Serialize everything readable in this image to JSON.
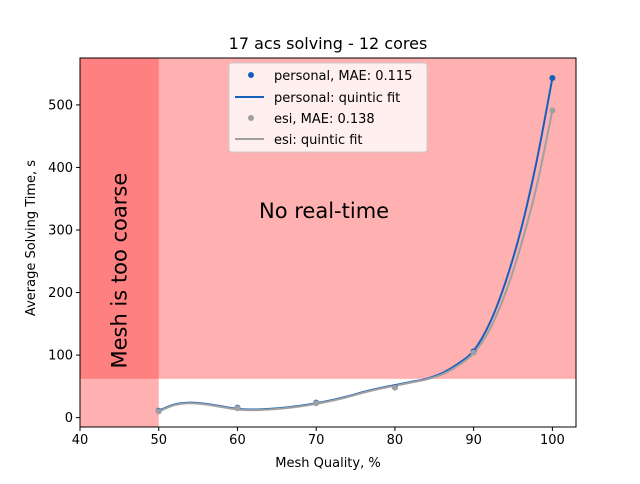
{
  "chart_data": {
    "type": "scatter",
    "title": "17 acs solving - 12 cores",
    "xlabel": "Mesh Quality, %",
    "ylabel": "Average Solving Time, s",
    "xlim": [
      40,
      103
    ],
    "ylim": [
      -15,
      575
    ],
    "xticks": [
      40,
      50,
      60,
      70,
      80,
      90,
      100
    ],
    "yticks": [
      0,
      100,
      200,
      300,
      400,
      500
    ],
    "grid": false,
    "legend_position": "top-center",
    "regions": [
      {
        "label": "",
        "x": [
          40,
          103
        ],
        "y": [
          62,
          575
        ],
        "color": "#ffb0b0"
      },
      {
        "label": "",
        "x": [
          40,
          50
        ],
        "y": [
          -15,
          62
        ],
        "color": "#ffb0b0"
      },
      {
        "label": "",
        "x": [
          40,
          50
        ],
        "y": [
          62,
          575
        ],
        "color": "#ff8080"
      }
    ],
    "annotations": [
      {
        "text": "Mesh is too coarse",
        "x": 45,
        "y": 235,
        "rotation": -90
      },
      {
        "text": "No real-time",
        "x": 71,
        "y": 330,
        "rotation": 0
      }
    ],
    "series": [
      {
        "name": "personal, MAE: 0.115",
        "kind": "points",
        "color": "#1560bd",
        "x": [
          50,
          60,
          70,
          80,
          90,
          100
        ],
        "y": [
          11,
          16,
          24,
          49,
          106,
          543
        ]
      },
      {
        "name": "personal: quintic fit",
        "kind": "line",
        "color": "#1560bd",
        "x": [
          50,
          52,
          54,
          56,
          58,
          60,
          62,
          64,
          66,
          68,
          70,
          72,
          74,
          76,
          78,
          80,
          82,
          84,
          86,
          88,
          90,
          92,
          94,
          96,
          98,
          100
        ],
        "y": [
          11,
          21,
          24,
          22,
          18,
          14,
          13,
          14,
          16,
          19,
          23,
          28,
          34,
          41,
          47,
          52,
          57,
          62,
          71,
          86,
          107,
          150,
          215,
          300,
          410,
          543
        ]
      },
      {
        "name": "esi, MAE: 0.138",
        "kind": "points",
        "color": "#a0a0a0",
        "x": [
          50,
          60,
          70,
          80,
          90,
          100
        ],
        "y": [
          10,
          15,
          23,
          48,
          104,
          491
        ]
      },
      {
        "name": "esi: quintic fit",
        "kind": "line",
        "color": "#a0a0a0",
        "x": [
          50,
          52,
          54,
          56,
          58,
          60,
          62,
          64,
          66,
          68,
          70,
          72,
          74,
          76,
          78,
          80,
          82,
          84,
          86,
          88,
          90,
          92,
          94,
          96,
          98,
          100
        ],
        "y": [
          10,
          20,
          23,
          21,
          17,
          13,
          12,
          13,
          15,
          18,
          22,
          27,
          33,
          40,
          46,
          51,
          56,
          61,
          69,
          83,
          103,
          140,
          198,
          275,
          370,
          491
        ]
      }
    ]
  }
}
